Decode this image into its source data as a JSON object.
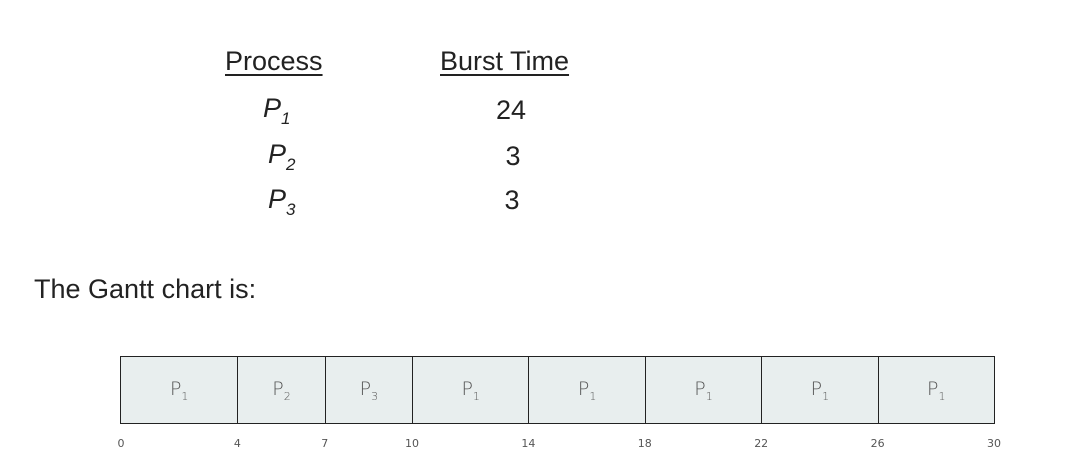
{
  "table": {
    "headers": {
      "process": "Process",
      "burst_time": "Burst Time"
    },
    "rows": [
      {
        "letter": "P",
        "sub": "1",
        "burst": "24"
      },
      {
        "letter": "P",
        "sub": "2",
        "burst": "3"
      },
      {
        "letter": "P",
        "sub": "3",
        "burst": "3"
      }
    ]
  },
  "caption": "The Gantt chart is:",
  "gantt": {
    "start": 0,
    "end": 30,
    "segments": [
      {
        "letter": "P",
        "sub": "1",
        "start": 0,
        "end": 4
      },
      {
        "letter": "P",
        "sub": "2",
        "start": 4,
        "end": 7
      },
      {
        "letter": "P",
        "sub": "3",
        "start": 7,
        "end": 10
      },
      {
        "letter": "P",
        "sub": "1",
        "start": 10,
        "end": 14
      },
      {
        "letter": "P",
        "sub": "1",
        "start": 14,
        "end": 18
      },
      {
        "letter": "P",
        "sub": "1",
        "start": 18,
        "end": 22
      },
      {
        "letter": "P",
        "sub": "1",
        "start": 22,
        "end": 26
      },
      {
        "letter": "P",
        "sub": "1",
        "start": 26,
        "end": 30
      }
    ],
    "ticks": [
      "0",
      "4",
      "7",
      "10",
      "14",
      "18",
      "22",
      "26",
      "30"
    ]
  }
}
